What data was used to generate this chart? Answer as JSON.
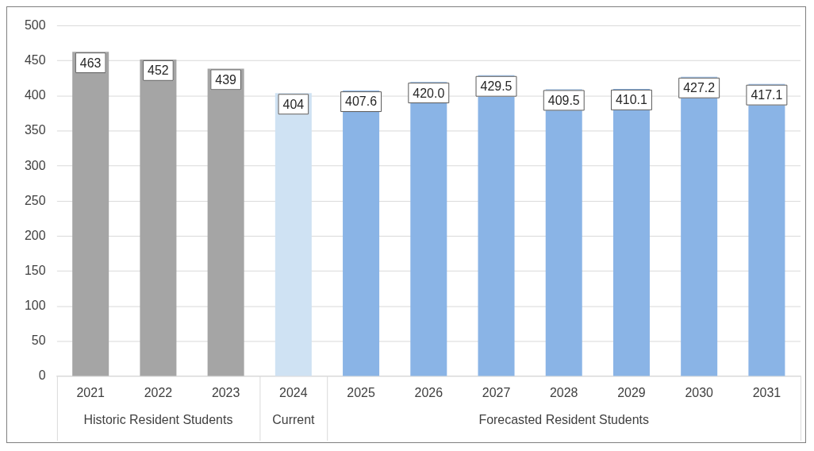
{
  "chart_data": {
    "type": "bar",
    "categories": [
      "2021",
      "2022",
      "2023",
      "2024",
      "2025",
      "2026",
      "2027",
      "2028",
      "2029",
      "2030",
      "2031"
    ],
    "values": [
      463,
      452,
      439,
      404,
      407.6,
      420.0,
      429.5,
      409.5,
      410.1,
      427.2,
      417.1
    ],
    "value_labels": [
      "463",
      "452",
      "439",
      "404",
      "407.6",
      "420.0",
      "429.5",
      "409.5",
      "410.1",
      "427.2",
      "417.1"
    ],
    "colors": [
      "#a5a5a5",
      "#a5a5a5",
      "#a5a5a5",
      "#cfe2f3",
      "#8ab4e6",
      "#8ab4e6",
      "#8ab4e6",
      "#8ab4e6",
      "#8ab4e6",
      "#8ab4e6",
      "#8ab4e6"
    ],
    "ylim": [
      0,
      500
    ],
    "yticks": [
      0,
      50,
      100,
      150,
      200,
      250,
      300,
      350,
      400,
      450,
      500
    ],
    "grid": "y",
    "legend": false,
    "annotations": [
      "Historic Resident Students",
      "Current",
      "Forecasted Resident Students"
    ]
  }
}
